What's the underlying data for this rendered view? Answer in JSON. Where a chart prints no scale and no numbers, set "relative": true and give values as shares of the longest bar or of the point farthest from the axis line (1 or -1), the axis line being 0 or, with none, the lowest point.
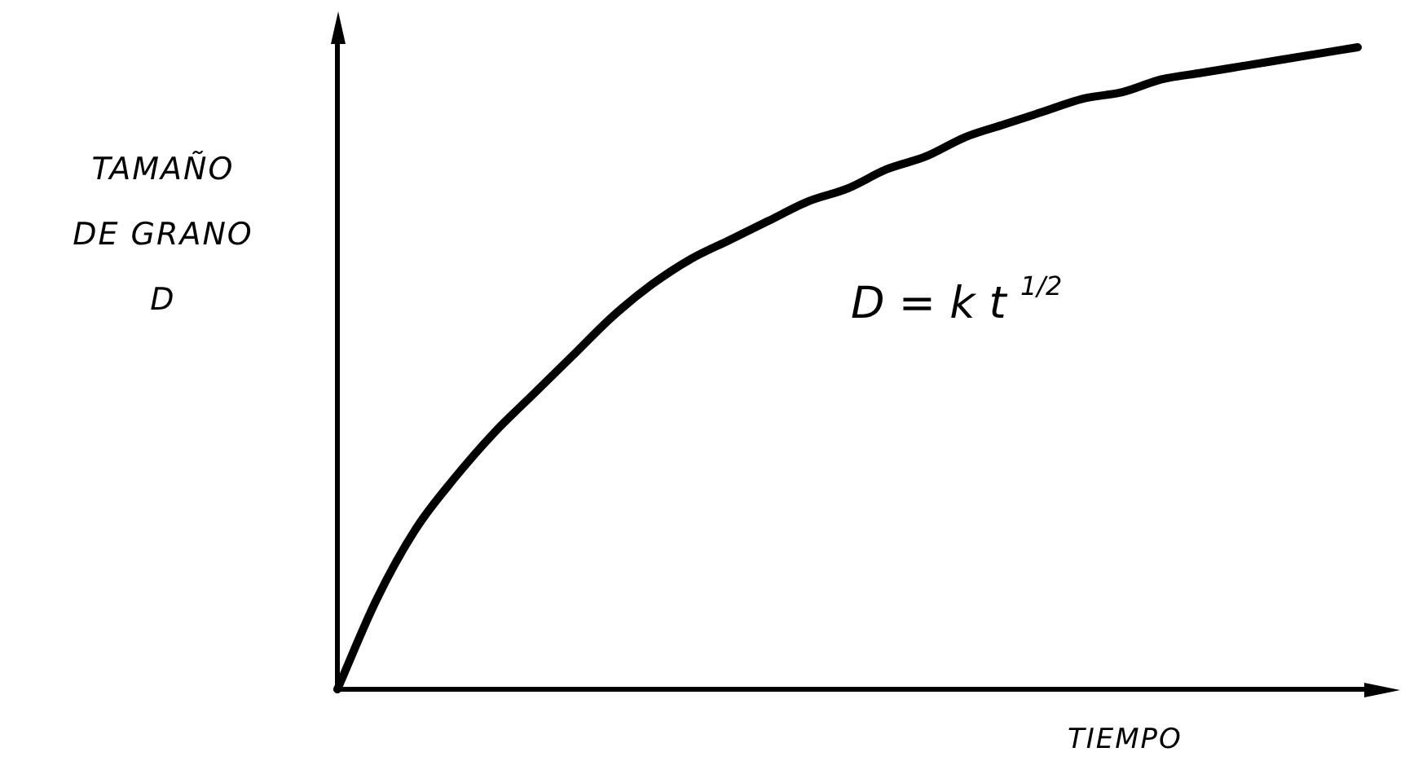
{
  "chart_data": {
    "type": "line",
    "relative": true,
    "ylabel": "TAMAÑO\nDE GRANO\nD",
    "xlabel": "TIEMPO",
    "annotations": [
      "D = k t $^{1/2}$"
    ],
    "categories": [
      null,
      null,
      null,
      null,
      null,
      null,
      null,
      null,
      null,
      null,
      null,
      null,
      null,
      null,
      null,
      null,
      null,
      null,
      null,
      null,
      null,
      null,
      null,
      null,
      null,
      null,
      null
    ],
    "series": [
      {
        "color": "#000000",
        "values": [
          0,
          0.14,
          0.25,
          0.33,
          0.4,
          0.46,
          0.52,
          0.58,
          0.63,
          0.67,
          0.7,
          0.73,
          0.76,
          0.78,
          0.81,
          0.83,
          0.86,
          0.88,
          0.9,
          0.92,
          0.93,
          0.95,
          0.96,
          0.97,
          0.98,
          0.99,
          1
        ]
      }
    ]
  }
}
